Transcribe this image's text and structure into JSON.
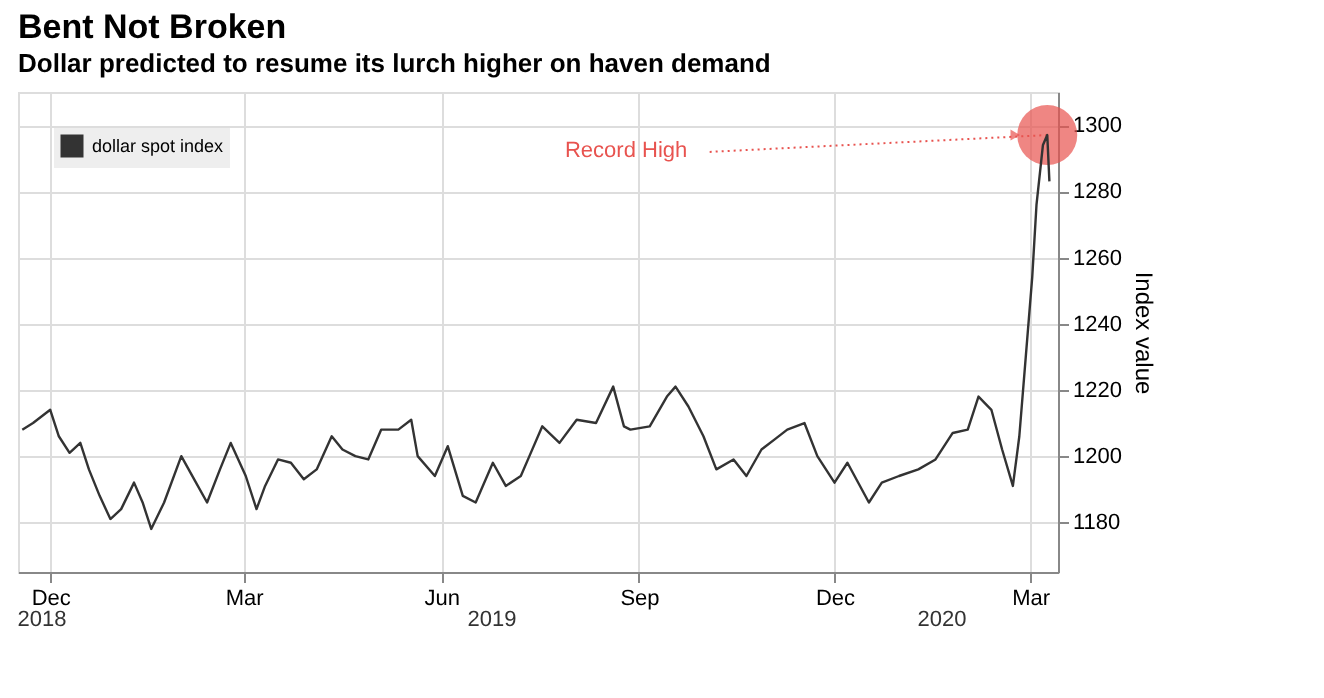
{
  "chart_data": {
    "type": "line",
    "title": "Bent Not Broken",
    "subtitle": "Dollar predicted to resume its lurch higher on haven demand",
    "ylabel": "Index value",
    "x": [
      "2018-12-02",
      "2018-12-07",
      "2018-12-15",
      "2018-12-19",
      "2018-12-24",
      "2018-12-29",
      "2019-01-02",
      "2019-01-07",
      "2019-01-12",
      "2019-01-17",
      "2019-01-23",
      "2019-01-27",
      "2019-01-31",
      "2019-02-06",
      "2019-02-14",
      "2019-02-20",
      "2019-02-26",
      "2019-03-04",
      "2019-03-09",
      "2019-03-16",
      "2019-03-21",
      "2019-03-25",
      "2019-03-31",
      "2019-04-06",
      "2019-04-12",
      "2019-04-18",
      "2019-04-25",
      "2019-04-30",
      "2019-05-06",
      "2019-05-12",
      "2019-05-18",
      "2019-05-26",
      "2019-06-01",
      "2019-06-04",
      "2019-06-12",
      "2019-06-18",
      "2019-06-25",
      "2019-07-01",
      "2019-07-09",
      "2019-07-15",
      "2019-07-22",
      "2019-07-26",
      "2019-08-01",
      "2019-08-09",
      "2019-08-17",
      "2019-08-26",
      "2019-09-03",
      "2019-09-08",
      "2019-09-11",
      "2019-09-20",
      "2019-09-28",
      "2019-10-02",
      "2019-10-08",
      "2019-10-15",
      "2019-10-21",
      "2019-10-29",
      "2019-11-04",
      "2019-11-11",
      "2019-11-17",
      "2019-11-23",
      "2019-12-01",
      "2019-12-07",
      "2019-12-15",
      "2019-12-21",
      "2019-12-31",
      "2020-01-06",
      "2020-01-14",
      "2020-01-23",
      "2020-01-31",
      "2020-02-08",
      "2020-02-15",
      "2020-02-20",
      "2020-02-26",
      "2020-03-02",
      "2020-03-07",
      "2020-03-10",
      "2020-03-13",
      "2020-03-16",
      "2020-03-18",
      "2020-03-21",
      "2020-03-23",
      "2020-03-24"
    ],
    "series": [
      {
        "name": "dollar spot index",
        "color": "#333333",
        "values": [
          1208,
          1210,
          1214,
          1206,
          1201,
          1204,
          1196,
          1188,
          1181,
          1184,
          1192,
          1186,
          1178,
          1186,
          1200,
          1193,
          1186,
          1196,
          1204,
          1194,
          1184,
          1191,
          1199,
          1198,
          1193,
          1196,
          1206,
          1202,
          1200,
          1199,
          1208,
          1208,
          1211,
          1200,
          1194,
          1203,
          1188,
          1186,
          1198,
          1191,
          1194,
          1200,
          1209,
          1204,
          1211,
          1210,
          1221,
          1209,
          1208,
          1209,
          1218,
          1221,
          1215,
          1206,
          1196,
          1199,
          1194,
          1202,
          1205,
          1208,
          1210,
          1200,
          1192,
          1198,
          1186,
          1192,
          1194,
          1196,
          1199,
          1207,
          1208,
          1218,
          1214,
          1202,
          1191,
          1206,
          1230,
          1254,
          1276,
          1294,
          1297,
          1283
        ]
      }
    ],
    "xlim": [
      "2018-11-30",
      "2020-03-28"
    ],
    "xticks": [
      {
        "value": "2018-12-15",
        "label": "Dec"
      },
      {
        "value": "2019-03-15",
        "label": "Mar"
      },
      {
        "value": "2019-06-15",
        "label": "Jun"
      },
      {
        "value": "2019-09-15",
        "label": "Sep"
      },
      {
        "value": "2019-12-15",
        "label": "Dec"
      },
      {
        "value": "2020-03-15",
        "label": "Mar"
      }
    ],
    "ylim": [
      1165,
      1310
    ],
    "yticks": [
      1180,
      1200,
      1220,
      1240,
      1260,
      1280,
      1300
    ],
    "annotations": [
      {
        "text": "Record High",
        "x": "2020-03-23",
        "y": 1297
      },
      "2018",
      "2019",
      "2020"
    ],
    "grid": true,
    "legend": "top left"
  }
}
